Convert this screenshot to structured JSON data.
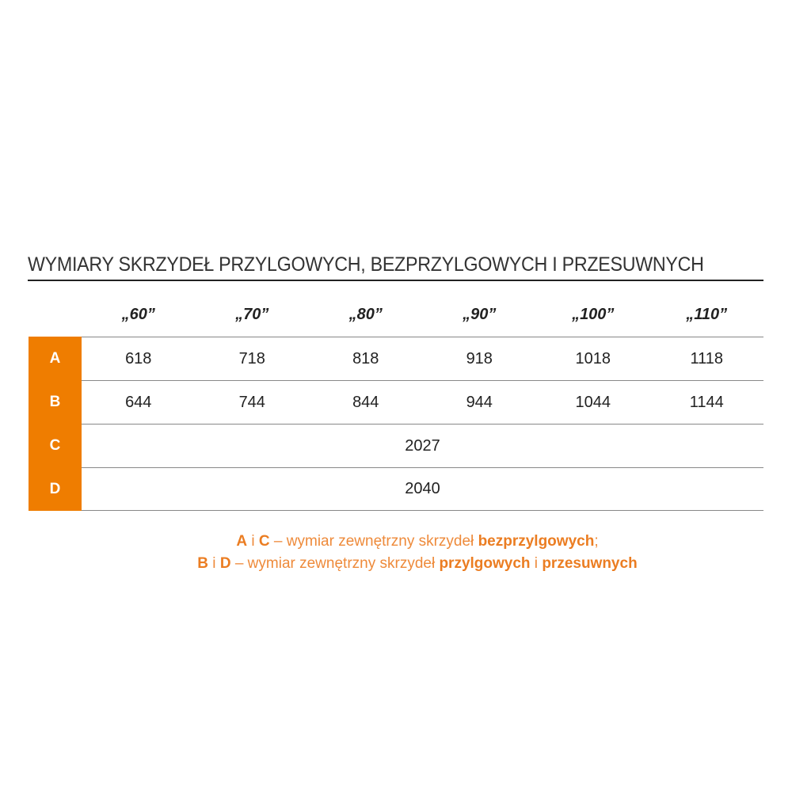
{
  "title": "WYMIARY SKRZYDEŁ PRZYLGOWYCH, BEZPRZYLGOWYCH I PRZESUWNYCH",
  "columns": [
    "„60”",
    "„70”",
    "„80”",
    "„90”",
    "„100”",
    "„110”"
  ],
  "rows": [
    {
      "label": "A",
      "values": [
        "618",
        "718",
        "818",
        "918",
        "1018",
        "1118"
      ]
    },
    {
      "label": "B",
      "values": [
        "644",
        "744",
        "844",
        "944",
        "1044",
        "1144"
      ]
    },
    {
      "label": "C",
      "span_value": "2027"
    },
    {
      "label": "D",
      "span_value": "2040"
    }
  ],
  "notes": {
    "line1": {
      "a": "A",
      "i": " i ",
      "c": "C",
      "text": " – wymiar zewnętrzny skrzydeł ",
      "bold": "bezprzylgowych",
      "end": ";"
    },
    "line2": {
      "b": "B",
      "i": " i ",
      "d": "D",
      "text": " – wymiar zewnętrzny skrzydeł ",
      "bold1": "przylgowych",
      "i2": " i ",
      "bold2": "przesuwnych"
    }
  },
  "colors": {
    "accent": "#ef7d00",
    "note_text": "#ee8a3a"
  }
}
